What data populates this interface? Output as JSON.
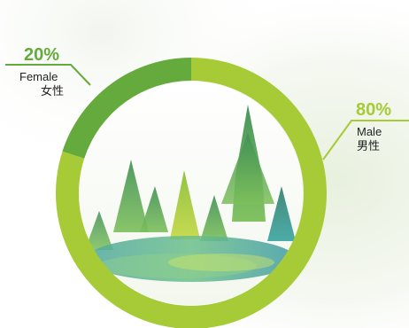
{
  "chart_data": {
    "type": "pie",
    "donut": true,
    "slices": [
      {
        "label": "Male",
        "label_zh": "男性",
        "value": 80,
        "value_label": "80%",
        "color": "#a6cb37"
      },
      {
        "label": "Female",
        "label_zh": "女性",
        "value": 20,
        "value_label": "20%",
        "color": "#64aa3c"
      }
    ]
  },
  "colors": {
    "male": "#a6cb37",
    "female": "#64aa3c",
    "background_wash": "#e9f1e2"
  },
  "illustration": "watercolor-pine-forest"
}
